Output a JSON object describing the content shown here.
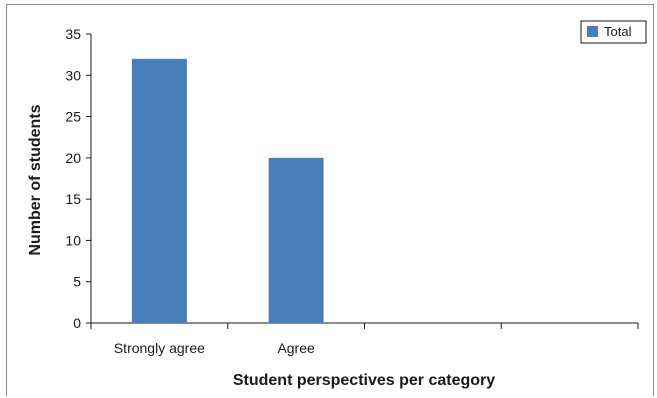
{
  "chart_data": {
    "type": "bar",
    "categories": [
      "Strongly agree",
      "Agree",
      "",
      ""
    ],
    "series": [
      {
        "name": "Total",
        "values": [
          32,
          20,
          0,
          0
        ],
        "color": "#4a7ebb"
      }
    ],
    "xlabel": "Student perspectives per category",
    "ylabel": "Number of students",
    "ylim": [
      0,
      35
    ],
    "yticks": [
      0,
      5,
      10,
      15,
      20,
      25,
      30,
      35
    ],
    "grid": false,
    "legend_position": "top-right"
  }
}
